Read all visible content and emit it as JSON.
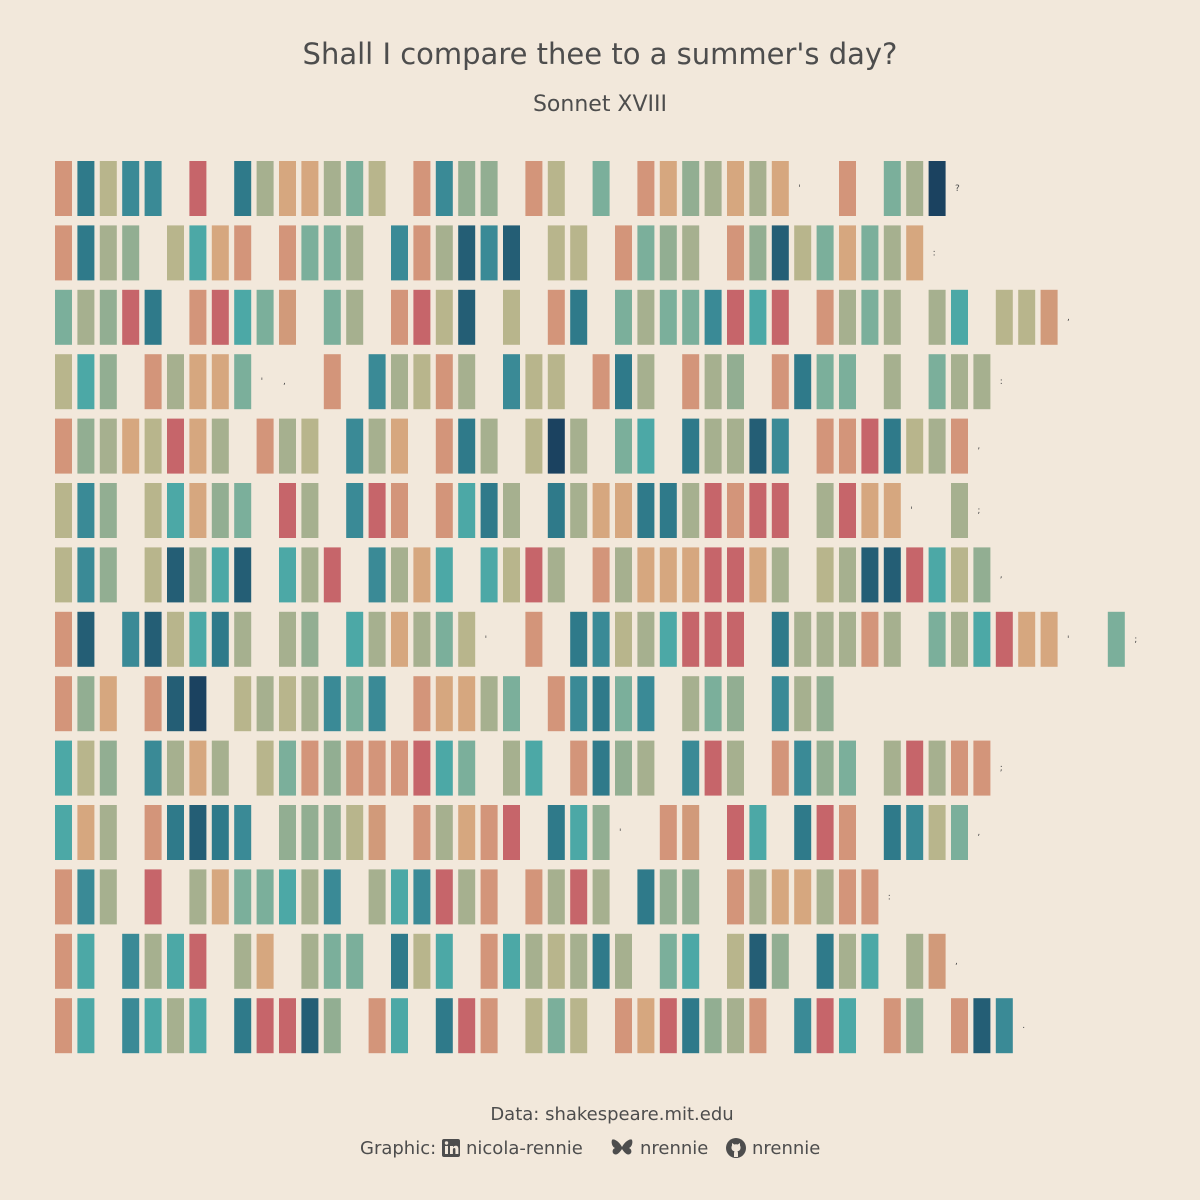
{
  "chart_data": {
    "type": "heatmap",
    "title": "Shall I compare thee to a summer's day?",
    "subtitle": "Sonnet XVIII",
    "caption": {
      "data_source": "Data: shakespeare.mit.edu",
      "graphic_prefix": "Graphic:",
      "linkedin_icon": "linkedin-icon",
      "linkedin": "nicola-rennie",
      "bluesky_icon": "butterfly-icon",
      "bluesky": "nrennie",
      "github_icon": "github-icon",
      "github": "nrennie"
    },
    "encoding": "each letter of the sonnet is one tile; gaps are spaces; punctuation is printed",
    "palette": {
      "a": "#D3957A",
      "b": "#2F7A8A",
      "c": "#B8B58C",
      "d": "#3A8A96",
      "e": "#92AE92",
      "f": "#C6656A",
      "g": "#7BAF9B",
      "h": "#D6A77F",
      "i": "#4CA8A6",
      "j": "#A6B08F",
      "k": "#C4B387",
      "l": "#245E75",
      "m": "#1B4260",
      "n": "#8FAF92",
      "o": "#D19A7A"
    },
    "lines": [
      "abcdd f bjhhjgc adee ac g ahejhjh' a gjm?",
      "abje ciha aggj dajldl cc agej aelcghgjh:",
      "gjefb afigo gj afcl c ab gjggdfif ajgj ji cco,",
      "cie ajhhg', a djcaj dcc abj aje abgg j gjj:",
      "aejhcfhj ajc djh abj cmj gi bjjld aafbcja,",
      "cde ciheg fj dfa aibj bjhhbbjfaff jfhh' j;",
      "cde cljil ijf djhi icfj ajhhhffhj cjllfice,",
      "al dlcibj je ijhjgc' a bdcjifff bjjjaj gjifhh' g;",
      "aeh alm cjcjdgd ahhjg adbgd jge dje",
      "ice djhj cgaeaaafig ji abej dfj adeg jfjaa;",
      "ihj ablbd eeeco ajhaf bie' ao fi bfa bdcg,",
      "adj f jhggijd jidfja ajfj bee ajhhjaa:",
      "ai djif jh jgg bci aijcjbj gi cle bji jo,",
      "ai diji bffle ai bfa cgc ahfbeja dfi ae ald."
    ]
  }
}
